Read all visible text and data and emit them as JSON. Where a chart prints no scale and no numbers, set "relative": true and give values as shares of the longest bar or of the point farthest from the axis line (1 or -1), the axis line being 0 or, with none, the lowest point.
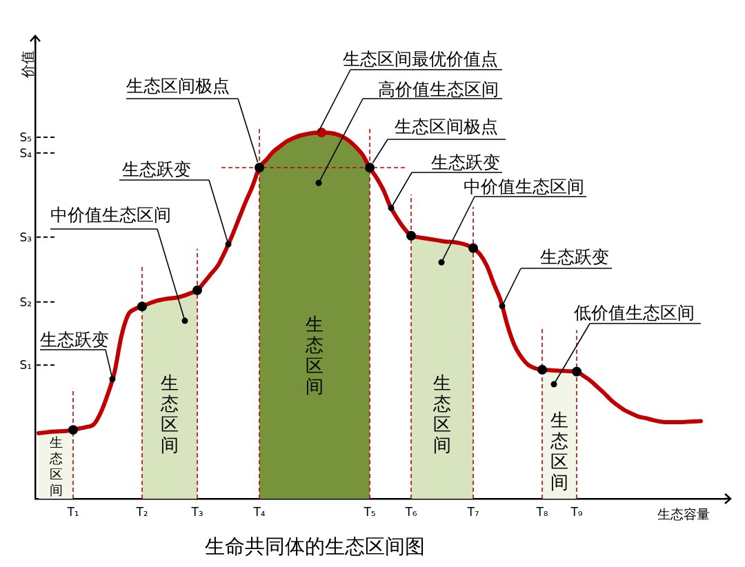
{
  "chart_data": {
    "type": "line",
    "title": "生命共同体的生态区间图",
    "xlabel": "生态容量",
    "ylabel": "价值",
    "relative": true,
    "categories": [
      null,
      null,
      null,
      null,
      null,
      "T₁",
      null,
      null,
      null,
      null,
      null,
      null,
      null,
      null,
      null,
      "T₂",
      null,
      null,
      null,
      null,
      null,
      null,
      null,
      "T₃",
      null,
      null,
      null,
      null,
      null,
      null,
      null,
      null,
      "T₄",
      null,
      null,
      null,
      null,
      null,
      null,
      null,
      null,
      null,
      null,
      null,
      null,
      null,
      null,
      null,
      "T₅",
      null,
      null,
      null,
      null,
      null,
      "T₆",
      null,
      null,
      null,
      null,
      null,
      null,
      null,
      null,
      "T₇",
      null,
      null,
      null,
      null,
      null,
      null,
      null,
      null,
      null,
      "T₈",
      null,
      null,
      null,
      null,
      "T₉",
      null,
      null,
      null,
      null,
      null,
      null,
      null,
      null,
      null,
      null,
      null,
      null,
      null,
      null,
      null,
      null,
      null,
      null,
      null,
      null,
      null
    ],
    "series": [
      {
        "type": "line",
        "color": "#c00000",
        "values": [
          0.179,
          0.181,
          0.183,
          0.184,
          0.185,
          0.188,
          0.192,
          0.196,
          0.203,
          0.235,
          0.284,
          0.345,
          0.444,
          0.503,
          0.518,
          0.525,
          0.533,
          0.54,
          0.544,
          0.547,
          0.549,
          0.554,
          0.561,
          0.569,
          0.591,
          0.614,
          0.637,
          0.674,
          0.716,
          0.763,
          0.81,
          0.853,
          0.904,
          0.925,
          0.947,
          0.962,
          0.976,
          0.985,
          0.992,
          0.996,
          0.999,
          1,
          0.999,
          0.996,
          0.989,
          0.977,
          0.96,
          0.938,
          0.904,
          0.876,
          0.842,
          0.797,
          0.765,
          0.738,
          0.718,
          0.714,
          0.711,
          0.708,
          0.705,
          0.702,
          0.701,
          0.698,
          0.693,
          0.684,
          0.667,
          0.635,
          0.586,
          0.54,
          0.471,
          0.418,
          0.386,
          0.365,
          0.356,
          0.352,
          0.351,
          0.35,
          0.349,
          0.348,
          0.347,
          0.335,
          0.322,
          0.305,
          0.288,
          0.269,
          0.254,
          0.241,
          0.232,
          0.224,
          0.22,
          0.215,
          0.211,
          0.209,
          0.209,
          0.209,
          0.21,
          0.211,
          0.212,
          null,
          null,
          null
        ]
      },
      {
        "type": "area",
        "name": "生态区间",
        "color": "#f2f6e9",
        "values": [
          0.179,
          0.181,
          0.183,
          0.184,
          0.185,
          0.188,
          null,
          null,
          null,
          null,
          null,
          null,
          null,
          null,
          null,
          null,
          null,
          null,
          null,
          null,
          null,
          null,
          null,
          null,
          null,
          null,
          null,
          null,
          null,
          null,
          null,
          null,
          null,
          null,
          null,
          null,
          null,
          null,
          null,
          null,
          null,
          null,
          null,
          null,
          null,
          null,
          null,
          null,
          null,
          null,
          null,
          null,
          null,
          null,
          null,
          null,
          null,
          null,
          null,
          null,
          null,
          null,
          null,
          null,
          null,
          null,
          null,
          null,
          null,
          null,
          null,
          null,
          null,
          null,
          null,
          null,
          null,
          null,
          null,
          null,
          null,
          null,
          null,
          null,
          null,
          null,
          null,
          null,
          null,
          null,
          null,
          null,
          null,
          null,
          null,
          null,
          null,
          null,
          null,
          null
        ]
      },
      {
        "type": "area",
        "name": "生态区间",
        "color": "#d7e4bd",
        "values": [
          null,
          null,
          null,
          null,
          null,
          null,
          null,
          null,
          null,
          null,
          null,
          null,
          null,
          null,
          null,
          0.525,
          0.533,
          0.54,
          0.544,
          0.547,
          0.549,
          0.554,
          0.561,
          0.569,
          null,
          null,
          null,
          null,
          null,
          null,
          null,
          null,
          null,
          null,
          null,
          null,
          null,
          null,
          null,
          null,
          null,
          null,
          null,
          null,
          null,
          null,
          null,
          null,
          null,
          null,
          null,
          null,
          null,
          null,
          null,
          null,
          null,
          null,
          null,
          null,
          null,
          null,
          null,
          null,
          null,
          null,
          null,
          null,
          null,
          null,
          null,
          null,
          null,
          null,
          null,
          null,
          null,
          null,
          null,
          null,
          null,
          null,
          null,
          null,
          null,
          null,
          null,
          null,
          null,
          null,
          null,
          null,
          null,
          null,
          null,
          null,
          null,
          null,
          null,
          null
        ]
      },
      {
        "type": "area",
        "name": "生态区间",
        "color": "#77933c",
        "values": [
          null,
          null,
          null,
          null,
          null,
          null,
          null,
          null,
          null,
          null,
          null,
          null,
          null,
          null,
          null,
          null,
          null,
          null,
          null,
          null,
          null,
          null,
          null,
          null,
          null,
          null,
          null,
          null,
          null,
          null,
          null,
          null,
          0.904,
          0.925,
          0.947,
          0.962,
          0.976,
          0.985,
          0.992,
          0.996,
          0.999,
          1,
          0.999,
          0.996,
          0.989,
          0.977,
          0.96,
          0.938,
          0.904,
          null,
          null,
          null,
          null,
          null,
          null,
          null,
          null,
          null,
          null,
          null,
          null,
          null,
          null,
          null,
          null,
          null,
          null,
          null,
          null,
          null,
          null,
          null,
          null,
          null,
          null,
          null,
          null,
          null,
          null,
          null,
          null,
          null,
          null,
          null,
          null,
          null,
          null,
          null,
          null,
          null,
          null,
          null,
          null,
          null,
          null,
          null,
          null,
          null,
          null,
          null
        ]
      },
      {
        "type": "area",
        "name": "生态区间",
        "color": "#d7e4bd",
        "values": [
          null,
          null,
          null,
          null,
          null,
          null,
          null,
          null,
          null,
          null,
          null,
          null,
          null,
          null,
          null,
          null,
          null,
          null,
          null,
          null,
          null,
          null,
          null,
          null,
          null,
          null,
          null,
          null,
          null,
          null,
          null,
          null,
          null,
          null,
          null,
          null,
          null,
          null,
          null,
          null,
          null,
          null,
          null,
          null,
          null,
          null,
          null,
          null,
          null,
          null,
          null,
          null,
          null,
          null,
          0.718,
          0.714,
          0.711,
          0.708,
          0.705,
          0.702,
          0.701,
          0.698,
          0.693,
          0.684,
          null,
          null,
          null,
          null,
          null,
          null,
          null,
          null,
          null,
          null,
          null,
          null,
          null,
          null,
          null,
          null,
          null,
          null,
          null,
          null,
          null,
          null,
          null,
          null,
          null,
          null,
          null,
          null,
          null,
          null,
          null,
          null,
          null,
          null,
          null,
          null
        ]
      },
      {
        "type": "area",
        "name": "生态区间",
        "color": "#f2f6e9",
        "values": [
          null,
          null,
          null,
          null,
          null,
          null,
          null,
          null,
          null,
          null,
          null,
          null,
          null,
          null,
          null,
          null,
          null,
          null,
          null,
          null,
          null,
          null,
          null,
          null,
          null,
          null,
          null,
          null,
          null,
          null,
          null,
          null,
          null,
          null,
          null,
          null,
          null,
          null,
          null,
          null,
          null,
          null,
          null,
          null,
          null,
          null,
          null,
          null,
          null,
          null,
          null,
          null,
          null,
          null,
          null,
          null,
          null,
          null,
          null,
          null,
          null,
          null,
          null,
          null,
          null,
          null,
          null,
          null,
          null,
          null,
          null,
          null,
          null,
          0.352,
          0.351,
          0.35,
          0.349,
          0.348,
          0.347,
          null,
          null,
          null,
          null,
          null,
          null,
          null,
          null,
          null,
          null,
          null,
          null,
          null,
          null,
          null,
          null,
          null,
          null,
          null,
          null,
          null
        ]
      },
      {
        "type": "scatter",
        "color": "#000000",
        "marker": "circle",
        "x": [
          "T₁",
          "T₂",
          "T₃",
          "T₄",
          "T₅",
          "T₆",
          "T₇",
          "T₈",
          "T₉"
        ],
        "values": [
          0.188,
          0.525,
          0.569,
          0.904,
          0.904,
          0.718,
          0.684,
          0.352,
          0.347
        ]
      },
      {
        "type": "scatter",
        "color": "#c00000",
        "marker": "circle",
        "values": [
          null,
          null,
          null,
          null,
          null,
          null,
          null,
          null,
          null,
          null,
          null,
          null,
          null,
          null,
          null,
          null,
          null,
          null,
          null,
          null,
          null,
          null,
          null,
          null,
          null,
          null,
          null,
          null,
          null,
          null,
          null,
          null,
          null,
          null,
          null,
          null,
          null,
          null,
          null,
          null,
          null,
          1,
          null,
          null,
          null,
          null,
          null,
          null,
          null,
          null,
          null,
          null,
          null,
          null,
          null,
          null,
          null,
          null,
          null,
          null,
          null,
          null,
          null,
          null,
          null,
          null,
          null,
          null,
          null,
          null,
          null,
          null,
          null,
          null,
          null,
          null,
          null,
          null,
          null,
          null,
          null,
          null,
          null,
          null,
          null,
          null,
          null,
          null,
          null,
          null,
          null,
          null,
          null,
          null,
          null,
          null,
          null,
          null,
          null,
          null
        ]
      }
    ],
    "ref_lines": [
      {
        "axis": "x",
        "value": "T₁",
        "color": "#c00000",
        "line_style": "dashed"
      },
      {
        "axis": "x",
        "value": "T₂",
        "color": "#c00000",
        "line_style": "dashed"
      },
      {
        "axis": "x",
        "value": "T₃",
        "color": "#c00000",
        "line_style": "dashed"
      },
      {
        "axis": "x",
        "value": "T₄",
        "color": "#c00000",
        "line_style": "dashed"
      },
      {
        "axis": "x",
        "value": "T₅",
        "color": "#c00000",
        "line_style": "dashed"
      },
      {
        "axis": "x",
        "value": "T₆",
        "color": "#c00000",
        "line_style": "dashed"
      },
      {
        "axis": "x",
        "value": "T₇",
        "color": "#c00000",
        "line_style": "dashed"
      },
      {
        "axis": "x",
        "value": "T₈",
        "color": "#c00000",
        "line_style": "dashed"
      },
      {
        "axis": "x",
        "value": "T₉",
        "color": "#c00000",
        "line_style": "dashed"
      },
      {
        "axis": "y",
        "value": 0.904,
        "color": "#c00000",
        "line_style": "dashed"
      },
      {
        "axis": "y",
        "value": 0.365,
        "label": "S₁",
        "color": "#000000",
        "line_style": "dashed"
      },
      {
        "axis": "y",
        "value": 0.537,
        "label": "S₂",
        "color": "#000000",
        "line_style": "dashed"
      },
      {
        "axis": "y",
        "value": 0.714,
        "label": "S₃",
        "color": "#000000",
        "line_style": "dashed"
      },
      {
        "axis": "y",
        "value": 0.944,
        "label": "S₄",
        "color": "#000000",
        "line_style": "dashed"
      },
      {
        "axis": "y",
        "value": 0.987,
        "label": "S₅",
        "color": "#000000",
        "line_style": "dashed"
      }
    ],
    "annotations": [
      "生态区间最优价值点",
      "高价值生态区间",
      {
        "text": "生态区间极点",
        "x": "T₄",
        "y": 0.904
      },
      {
        "text": "生态区间极点",
        "x": "T₅",
        "y": 0.904
      },
      "生态跃变",
      "生态跃变",
      "中价值生态区间",
      "中价值生态区间",
      "生态跃变",
      "生态跃变",
      "低价值生态区间"
    ]
  }
}
